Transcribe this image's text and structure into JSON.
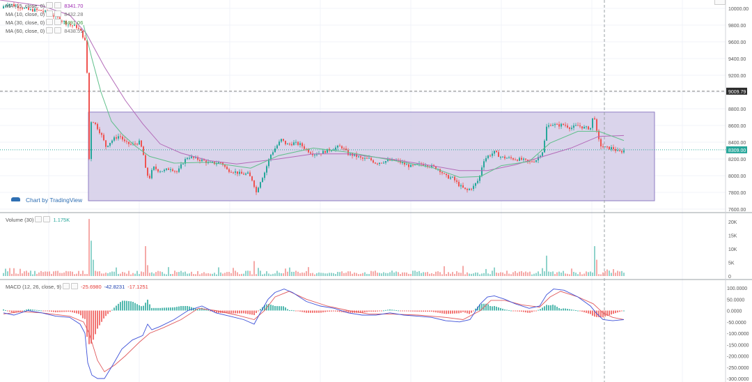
{
  "main_legend": [
    {
      "label": "MA (15, close, 0)",
      "value": "8341.70",
      "color": "#9c27b0"
    },
    {
      "label": "MA (10, close, 0)",
      "value": "8432.28",
      "color": "#9e9e9e"
    },
    {
      "label": "MA (30, close, 0)",
      "value": "8491.06",
      "color": "#43a047"
    },
    {
      "label": "MA (60, close, 0)",
      "value": "8438.51",
      "color": "#9e9e9e"
    }
  ],
  "volume_legend": {
    "label": "Volume (30)",
    "value": "1.175K",
    "color": "#26a69a"
  },
  "macd_legend": {
    "label": "MACD (12, 26, close, 9)",
    "values": [
      {
        "v": "-25.6980",
        "color": "#e53935"
      },
      {
        "v": "-42.8231",
        "color": "#1e40af"
      },
      {
        "v": "-17.1251",
        "color": "#e53935"
      }
    ]
  },
  "watermark": "Chart by TradingView",
  "colors": {
    "up": "#26a69a",
    "down": "#ef5350",
    "box_fill": "#d4cce8",
    "box_stroke": "#8e7cc3",
    "ma_purple": "#b36ab8",
    "ma_green": "#5fbf8a",
    "macd": "#3b4fd8",
    "signal": "#e0585b"
  },
  "chart_data": [
    {
      "type": "line",
      "title": "",
      "price_axis": {
        "ticks": [
          "10000.00",
          "9800.00",
          "9600.00",
          "9400.00",
          "9200.00",
          "9000.00",
          "8800.00",
          "8600.00",
          "8400.00",
          "8200.00",
          "8000.00",
          "7800.00",
          "7600.00"
        ],
        "min": 7600,
        "max": 10000
      },
      "price_labels": [
        {
          "text": "9009.79",
          "value": 9009.79,
          "style": "dark"
        },
        {
          "text": "8309.00",
          "value": 8309.0,
          "style": "teal"
        }
      ],
      "range_box": {
        "top": 8760,
        "bottom": 7700
      },
      "close_series": [
        [
          0,
          10000
        ],
        [
          12,
          10060
        ],
        [
          22,
          10030
        ],
        [
          32,
          10010
        ],
        [
          40,
          9980
        ],
        [
          50,
          9980
        ],
        [
          60,
          9970
        ],
        [
          70,
          9940
        ],
        [
          80,
          9900
        ],
        [
          90,
          9850
        ],
        [
          100,
          9800
        ],
        [
          110,
          9780
        ],
        [
          116,
          9720
        ],
        [
          120,
          9650
        ],
        [
          124,
          9560
        ],
        [
          126,
          8900
        ],
        [
          128,
          8200
        ],
        [
          131,
          8650
        ],
        [
          134,
          8650
        ],
        [
          138,
          8600
        ],
        [
          145,
          8500
        ],
        [
          152,
          8350
        ],
        [
          158,
          8400
        ],
        [
          165,
          8450
        ],
        [
          172,
          8480
        ],
        [
          180,
          8390
        ],
        [
          190,
          8370
        ],
        [
          200,
          8400
        ],
        [
          205,
          8300
        ],
        [
          210,
          8020
        ],
        [
          215,
          7980
        ],
        [
          220,
          8100
        ],
        [
          228,
          8060
        ],
        [
          236,
          8060
        ],
        [
          245,
          8090
        ],
        [
          255,
          8040
        ],
        [
          262,
          8150
        ],
        [
          270,
          8230
        ],
        [
          282,
          8200
        ],
        [
          292,
          8180
        ],
        [
          300,
          8150
        ],
        [
          310,
          8150
        ],
        [
          318,
          8160
        ],
        [
          326,
          8070
        ],
        [
          336,
          8050
        ],
        [
          346,
          8020
        ],
        [
          356,
          8020
        ],
        [
          363,
          7940
        ],
        [
          368,
          7800
        ],
        [
          373,
          7920
        ],
        [
          380,
          8040
        ],
        [
          388,
          8240
        ],
        [
          396,
          8340
        ],
        [
          404,
          8430
        ],
        [
          412,
          8370
        ],
        [
          422,
          8390
        ],
        [
          432,
          8370
        ],
        [
          440,
          8310
        ],
        [
          450,
          8260
        ],
        [
          460,
          8270
        ],
        [
          470,
          8300
        ],
        [
          480,
          8330
        ],
        [
          490,
          8350
        ],
        [
          500,
          8260
        ],
        [
          510,
          8240
        ],
        [
          520,
          8200
        ],
        [
          530,
          8200
        ],
        [
          540,
          8150
        ],
        [
          550,
          8170
        ],
        [
          560,
          8180
        ],
        [
          570,
          8180
        ],
        [
          580,
          8140
        ],
        [
          590,
          8110
        ],
        [
          600,
          8130
        ],
        [
          610,
          8140
        ],
        [
          620,
          8110
        ],
        [
          630,
          8080
        ],
        [
          640,
          7990
        ],
        [
          650,
          7970
        ],
        [
          660,
          7880
        ],
        [
          670,
          7820
        ],
        [
          680,
          7870
        ],
        [
          688,
          7960
        ],
        [
          694,
          8180
        ],
        [
          700,
          8230
        ],
        [
          710,
          8280
        ],
        [
          720,
          8220
        ],
        [
          730,
          8210
        ],
        [
          740,
          8200
        ],
        [
          750,
          8190
        ],
        [
          760,
          8160
        ],
        [
          770,
          8190
        ],
        [
          780,
          8300
        ],
        [
          785,
          8580
        ],
        [
          792,
          8620
        ],
        [
          800,
          8600
        ],
        [
          810,
          8610
        ],
        [
          820,
          8570
        ],
        [
          830,
          8600
        ],
        [
          840,
          8570
        ],
        [
          848,
          8570
        ],
        [
          853,
          8750
        ],
        [
          858,
          8460
        ],
        [
          863,
          8360
        ],
        [
          870,
          8330
        ],
        [
          880,
          8330
        ],
        [
          888,
          8280
        ],
        [
          896,
          8300
        ]
      ],
      "ma_purple": [
        [
          0,
          10100
        ],
        [
          60,
          10030
        ],
        [
          100,
          9920
        ],
        [
          124,
          9700
        ],
        [
          150,
          9300
        ],
        [
          180,
          8900
        ],
        [
          205,
          8620
        ],
        [
          230,
          8380
        ],
        [
          260,
          8270
        ],
        [
          300,
          8180
        ],
        [
          340,
          8140
        ],
        [
          400,
          8200
        ],
        [
          450,
          8260
        ],
        [
          500,
          8260
        ],
        [
          560,
          8200
        ],
        [
          620,
          8120
        ],
        [
          660,
          8060
        ],
        [
          700,
          8060
        ],
        [
          740,
          8130
        ],
        [
          780,
          8230
        ],
        [
          820,
          8330
        ],
        [
          860,
          8470
        ],
        [
          896,
          8480
        ]
      ],
      "ma_green": [
        [
          120,
          9800
        ],
        [
          132,
          9400
        ],
        [
          145,
          9000
        ],
        [
          160,
          8650
        ],
        [
          175,
          8500
        ],
        [
          195,
          8350
        ],
        [
          215,
          8230
        ],
        [
          250,
          8150
        ],
        [
          300,
          8160
        ],
        [
          360,
          8090
        ],
        [
          400,
          8240
        ],
        [
          450,
          8330
        ],
        [
          500,
          8280
        ],
        [
          560,
          8190
        ],
        [
          620,
          8100
        ],
        [
          660,
          7980
        ],
        [
          690,
          7990
        ],
        [
          720,
          8120
        ],
        [
          760,
          8170
        ],
        [
          790,
          8390
        ],
        [
          830,
          8530
        ],
        [
          860,
          8530
        ],
        [
          896,
          8420
        ]
      ]
    },
    {
      "type": "bar",
      "title": "Volume (30)",
      "axis_ticks": [
        "20K",
        "15K",
        "10K",
        "5K",
        "0"
      ],
      "max": 20000,
      "spikes": [
        {
          "x": 127,
          "v": 21000
        },
        {
          "x": 130,
          "v": 13000
        },
        {
          "x": 133,
          "v": 6000
        },
        {
          "x": 210,
          "v": 11000
        },
        {
          "x": 213,
          "v": 4000
        },
        {
          "x": 366,
          "v": 5500
        },
        {
          "x": 372,
          "v": 3000
        },
        {
          "x": 785,
          "v": 7500
        },
        {
          "x": 853,
          "v": 11000
        },
        {
          "x": 856,
          "v": 6000
        }
      ]
    },
    {
      "type": "line",
      "title": "MACD (12, 26, close, 9)",
      "axis_ticks": [
        "100.0000",
        "50.0000",
        "0.0000",
        "-50.0000",
        "-100.0000",
        "-150.0000",
        "-200.0000",
        "-250.0000",
        "-300.0000"
      ],
      "min": -300,
      "max": 100,
      "macd": [
        [
          5,
          -10
        ],
        [
          20,
          -20
        ],
        [
          40,
          0
        ],
        [
          60,
          -10
        ],
        [
          80,
          -25
        ],
        [
          100,
          -30
        ],
        [
          115,
          -60
        ],
        [
          122,
          -100
        ],
        [
          126,
          -230
        ],
        [
          132,
          -285
        ],
        [
          140,
          -300
        ],
        [
          150,
          -300
        ],
        [
          162,
          -240
        ],
        [
          175,
          -170
        ],
        [
          190,
          -130
        ],
        [
          205,
          -110
        ],
        [
          212,
          -60
        ],
        [
          218,
          -85
        ],
        [
          230,
          -70
        ],
        [
          250,
          -40
        ],
        [
          270,
          0
        ],
        [
          290,
          20
        ],
        [
          310,
          -10
        ],
        [
          330,
          -25
        ],
        [
          350,
          -40
        ],
        [
          365,
          -60
        ],
        [
          372,
          -20
        ],
        [
          385,
          50
        ],
        [
          395,
          80
        ],
        [
          408,
          95
        ],
        [
          420,
          80
        ],
        [
          440,
          40
        ],
        [
          460,
          20
        ],
        [
          480,
          10
        ],
        [
          500,
          -10
        ],
        [
          520,
          -20
        ],
        [
          540,
          -20
        ],
        [
          560,
          -10
        ],
        [
          580,
          -20
        ],
        [
          600,
          -25
        ],
        [
          620,
          -30
        ],
        [
          640,
          -45
        ],
        [
          660,
          -50
        ],
        [
          675,
          -40
        ],
        [
          690,
          30
        ],
        [
          700,
          60
        ],
        [
          710,
          65
        ],
        [
          725,
          50
        ],
        [
          740,
          30
        ],
        [
          760,
          10
        ],
        [
          775,
          20
        ],
        [
          785,
          70
        ],
        [
          795,
          95
        ],
        [
          810,
          90
        ],
        [
          830,
          60
        ],
        [
          848,
          20
        ],
        [
          856,
          -10
        ],
        [
          866,
          -40
        ],
        [
          880,
          -45
        ],
        [
          896,
          -40
        ]
      ],
      "signal": [
        [
          5,
          -15
        ],
        [
          30,
          -5
        ],
        [
          60,
          -10
        ],
        [
          100,
          -25
        ],
        [
          120,
          -50
        ],
        [
          128,
          -100
        ],
        [
          140,
          -220
        ],
        [
          150,
          -270
        ],
        [
          165,
          -240
        ],
        [
          180,
          -200
        ],
        [
          200,
          -140
        ],
        [
          215,
          -100
        ],
        [
          235,
          -75
        ],
        [
          260,
          -40
        ],
        [
          285,
          10
        ],
        [
          310,
          0
        ],
        [
          340,
          -20
        ],
        [
          365,
          -40
        ],
        [
          380,
          0
        ],
        [
          395,
          60
        ],
        [
          415,
          85
        ],
        [
          440,
          50
        ],
        [
          470,
          20
        ],
        [
          500,
          0
        ],
        [
          530,
          -15
        ],
        [
          560,
          -15
        ],
        [
          600,
          -20
        ],
        [
          640,
          -30
        ],
        [
          665,
          -40
        ],
        [
          690,
          0
        ],
        [
          705,
          45
        ],
        [
          725,
          45
        ],
        [
          750,
          25
        ],
        [
          775,
          15
        ],
        [
          790,
          60
        ],
        [
          805,
          85
        ],
        [
          830,
          60
        ],
        [
          852,
          30
        ],
        [
          866,
          -10
        ],
        [
          880,
          -30
        ],
        [
          896,
          -40
        ]
      ]
    }
  ]
}
